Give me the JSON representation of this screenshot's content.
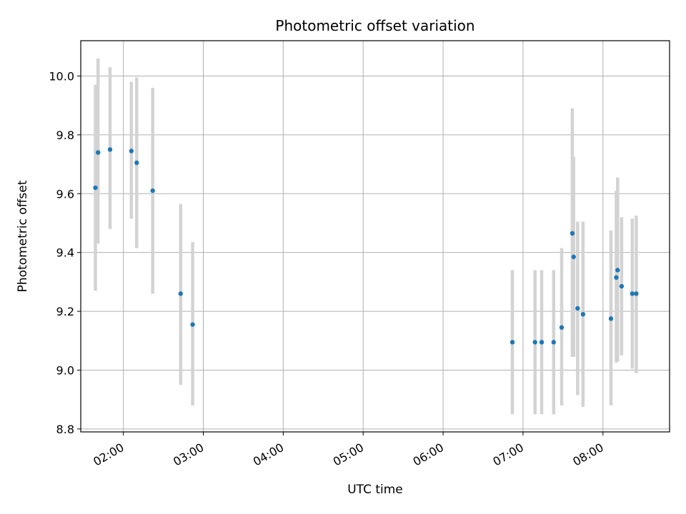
{
  "chart_data": {
    "type": "scatter",
    "title": "Photometric offset variation",
    "xlabel": "UTC time",
    "ylabel": "Photometric offset",
    "x_tick_labels": [
      "02:00",
      "03:00",
      "04:00",
      "05:00",
      "06:00",
      "07:00",
      "08:00"
    ],
    "y_tick_labels": [
      "8.8",
      "9.0",
      "9.2",
      "9.4",
      "9.6",
      "9.8",
      "10.0"
    ],
    "xlim": [
      "01:28",
      "08:50"
    ],
    "ylim": [
      8.79,
      10.12
    ],
    "grid": true,
    "marker_color": "#1f77b4",
    "errorbar_color": "#d3d3d3",
    "points": [
      {
        "x": "01:39",
        "y": 9.62,
        "ylow": 9.27,
        "yhigh": 9.97
      },
      {
        "x": "01:41",
        "y": 9.74,
        "ylow": 9.43,
        "yhigh": 10.06
      },
      {
        "x": "01:50",
        "y": 9.75,
        "ylow": 9.48,
        "yhigh": 10.03
      },
      {
        "x": "02:06",
        "y": 9.745,
        "ylow": 9.515,
        "yhigh": 9.98
      },
      {
        "x": "02:10",
        "y": 9.705,
        "ylow": 9.415,
        "yhigh": 9.995
      },
      {
        "x": "02:22",
        "y": 9.61,
        "ylow": 9.26,
        "yhigh": 9.96
      },
      {
        "x": "02:43",
        "y": 9.26,
        "ylow": 8.95,
        "yhigh": 9.565
      },
      {
        "x": "02:52",
        "y": 9.155,
        "ylow": 8.88,
        "yhigh": 9.435
      },
      {
        "x": "06:52",
        "y": 9.095,
        "ylow": 8.85,
        "yhigh": 9.34
      },
      {
        "x": "07:09",
        "y": 9.095,
        "ylow": 8.85,
        "yhigh": 9.34
      },
      {
        "x": "07:14",
        "y": 9.095,
        "ylow": 8.85,
        "yhigh": 9.34
      },
      {
        "x": "07:23",
        "y": 9.095,
        "ylow": 8.85,
        "yhigh": 9.34
      },
      {
        "x": "07:29",
        "y": 9.145,
        "ylow": 8.88,
        "yhigh": 9.415
      },
      {
        "x": "07:37",
        "y": 9.465,
        "ylow": 9.045,
        "yhigh": 9.89
      },
      {
        "x": "07:38",
        "y": 9.385,
        "ylow": 9.045,
        "yhigh": 9.725
      },
      {
        "x": "07:41",
        "y": 9.21,
        "ylow": 8.915,
        "yhigh": 9.505
      },
      {
        "x": "07:45",
        "y": 9.19,
        "ylow": 8.875,
        "yhigh": 9.505
      },
      {
        "x": "08:06",
        "y": 9.175,
        "ylow": 8.88,
        "yhigh": 9.475
      },
      {
        "x": "08:10",
        "y": 9.315,
        "ylow": 9.025,
        "yhigh": 9.61
      },
      {
        "x": "08:11",
        "y": 9.34,
        "ylow": 9.03,
        "yhigh": 9.655
      },
      {
        "x": "08:14",
        "y": 9.285,
        "ylow": 9.05,
        "yhigh": 9.52
      },
      {
        "x": "08:22",
        "y": 9.26,
        "ylow": 9.005,
        "yhigh": 9.515
      },
      {
        "x": "08:25",
        "y": 9.26,
        "ylow": 8.99,
        "yhigh": 9.525
      }
    ]
  }
}
